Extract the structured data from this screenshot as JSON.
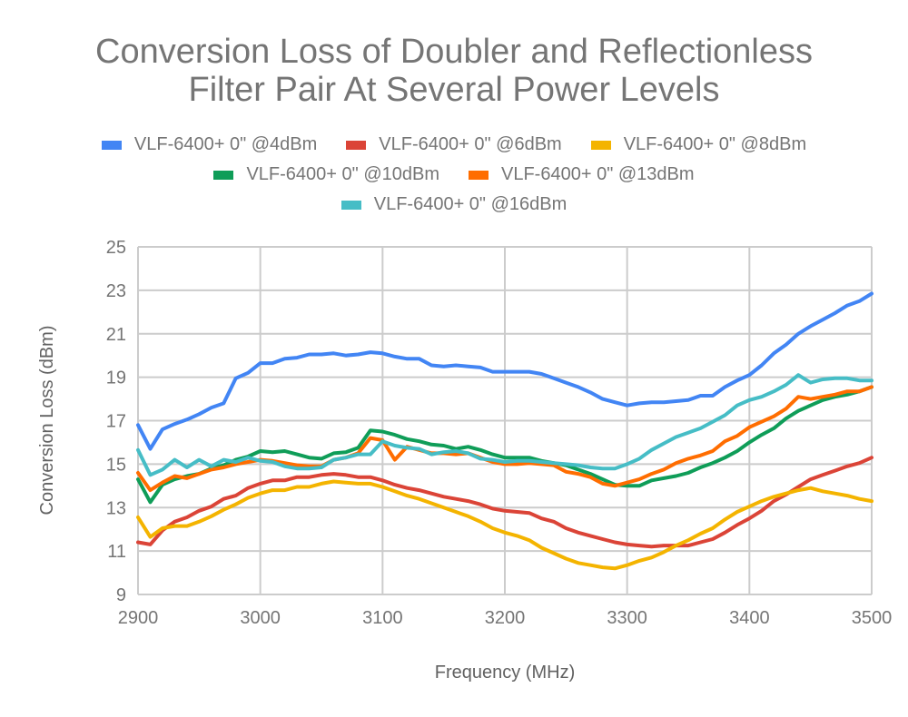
{
  "chart_data": {
    "type": "line",
    "title_lines": [
      "Conversion Loss of Doubler and Reflectionless",
      "Filter Pair At Several Power Levels"
    ],
    "xlabel": "Frequency (MHz)",
    "ylabel": "Conversion Loss (dBm)",
    "xlim": [
      2900,
      3500
    ],
    "ylim": [
      9,
      25
    ],
    "x_ticks": [
      2900,
      3000,
      3100,
      3200,
      3300,
      3400,
      3500
    ],
    "y_ticks": [
      9,
      11,
      13,
      15,
      17,
      19,
      21,
      23,
      25
    ],
    "grid": true,
    "legend_position": "top",
    "x_start": 2900,
    "x_step": 10,
    "series": [
      {
        "name": "VLF-6400+ 0\" @4dBm",
        "color": "#4285F4",
        "values": [
          16.8,
          15.7,
          16.6,
          16.85,
          17.05,
          17.3,
          17.6,
          17.8,
          18.95,
          19.2,
          19.65,
          19.65,
          19.85,
          19.9,
          20.05,
          20.05,
          20.1,
          20.0,
          20.05,
          20.15,
          20.1,
          19.95,
          19.85,
          19.85,
          19.55,
          19.5,
          19.55,
          19.5,
          19.45,
          19.25,
          19.25,
          19.25,
          19.25,
          19.15,
          18.95,
          18.75,
          18.55,
          18.3,
          18.0,
          17.85,
          17.7,
          17.8,
          17.85,
          17.85,
          17.9,
          17.95,
          18.15,
          18.15,
          18.55,
          18.85,
          19.1,
          19.55,
          20.1,
          20.5,
          21.0,
          21.35,
          21.65,
          21.95,
          22.3,
          22.5,
          22.85
        ]
      },
      {
        "name": "VLF-6400+ 0\" @6dBm",
        "color": "#DB4437",
        "values": [
          11.4,
          11.3,
          11.95,
          12.35,
          12.55,
          12.85,
          13.05,
          13.4,
          13.55,
          13.9,
          14.1,
          14.25,
          14.25,
          14.4,
          14.4,
          14.5,
          14.55,
          14.5,
          14.4,
          14.4,
          14.25,
          14.05,
          13.9,
          13.8,
          13.65,
          13.5,
          13.4,
          13.3,
          13.15,
          12.95,
          12.85,
          12.8,
          12.75,
          12.5,
          12.35,
          12.05,
          11.85,
          11.7,
          11.55,
          11.4,
          11.3,
          11.25,
          11.2,
          11.25,
          11.25,
          11.25,
          11.4,
          11.55,
          11.85,
          12.2,
          12.5,
          12.85,
          13.3,
          13.6,
          13.95,
          14.3,
          14.5,
          14.7,
          14.9,
          15.05,
          15.3
        ]
      },
      {
        "name": "VLF-6400+ 0\" @8dBm",
        "color": "#F4B400",
        "values": [
          12.55,
          11.65,
          12.05,
          12.15,
          12.15,
          12.35,
          12.6,
          12.9,
          13.15,
          13.45,
          13.65,
          13.8,
          13.8,
          13.95,
          13.95,
          14.1,
          14.2,
          14.15,
          14.1,
          14.1,
          13.95,
          13.75,
          13.55,
          13.4,
          13.2,
          13.0,
          12.8,
          12.6,
          12.35,
          12.05,
          11.85,
          11.7,
          11.5,
          11.15,
          10.9,
          10.65,
          10.45,
          10.35,
          10.25,
          10.2,
          10.35,
          10.55,
          10.7,
          10.95,
          11.25,
          11.5,
          11.8,
          12.05,
          12.45,
          12.8,
          13.05,
          13.3,
          13.5,
          13.65,
          13.8,
          13.9,
          13.75,
          13.65,
          13.55,
          13.4,
          13.3
        ]
      },
      {
        "name": "VLF-6400+ 0\" @10dBm",
        "color": "#0F9D58",
        "values": [
          14.3,
          13.25,
          14.05,
          14.3,
          14.45,
          14.55,
          14.8,
          14.95,
          15.2,
          15.35,
          15.6,
          15.55,
          15.6,
          15.45,
          15.3,
          15.25,
          15.5,
          15.55,
          15.75,
          16.55,
          16.5,
          16.35,
          16.15,
          16.05,
          15.9,
          15.85,
          15.7,
          15.8,
          15.65,
          15.45,
          15.3,
          15.3,
          15.3,
          15.15,
          15.05,
          14.95,
          14.75,
          14.55,
          14.3,
          14.05,
          14.0,
          14.0,
          14.25,
          14.35,
          14.45,
          14.6,
          14.85,
          15.05,
          15.3,
          15.6,
          16.0,
          16.35,
          16.65,
          17.1,
          17.45,
          17.7,
          17.95,
          18.1,
          18.2,
          18.35,
          18.55
        ]
      },
      {
        "name": "VLF-6400+ 0\" @13dBm",
        "color": "#FF6D00",
        "values": [
          14.6,
          13.8,
          14.15,
          14.45,
          14.35,
          14.55,
          14.75,
          14.85,
          15.0,
          15.1,
          15.2,
          15.15,
          15.05,
          14.95,
          14.9,
          14.9,
          15.2,
          15.3,
          15.5,
          16.2,
          16.1,
          15.2,
          15.8,
          15.65,
          15.5,
          15.5,
          15.45,
          15.5,
          15.3,
          15.1,
          15.0,
          15.0,
          15.05,
          15.0,
          14.95,
          14.65,
          14.55,
          14.4,
          14.1,
          14.0,
          14.15,
          14.3,
          14.55,
          14.75,
          15.05,
          15.25,
          15.4,
          15.6,
          16.05,
          16.3,
          16.7,
          16.95,
          17.2,
          17.55,
          18.1,
          18.0,
          18.1,
          18.2,
          18.35,
          18.35,
          18.55
        ]
      },
      {
        "name": "VLF-6400+ 0\" @16dBm",
        "color": "#46BDC6",
        "values": [
          15.65,
          14.5,
          14.75,
          15.2,
          14.85,
          15.2,
          14.9,
          15.2,
          15.1,
          15.3,
          15.15,
          15.1,
          14.9,
          14.8,
          14.8,
          14.85,
          15.2,
          15.3,
          15.45,
          15.45,
          16.05,
          15.85,
          15.75,
          15.7,
          15.45,
          15.55,
          15.6,
          15.5,
          15.25,
          15.2,
          15.1,
          15.15,
          15.15,
          15.1,
          15.05,
          15.0,
          14.95,
          14.85,
          14.8,
          14.8,
          15.0,
          15.25,
          15.65,
          15.95,
          16.25,
          16.45,
          16.65,
          16.95,
          17.25,
          17.7,
          17.95,
          18.1,
          18.35,
          18.65,
          19.1,
          18.75,
          18.9,
          18.95,
          18.95,
          18.85,
          18.85
        ]
      }
    ]
  }
}
